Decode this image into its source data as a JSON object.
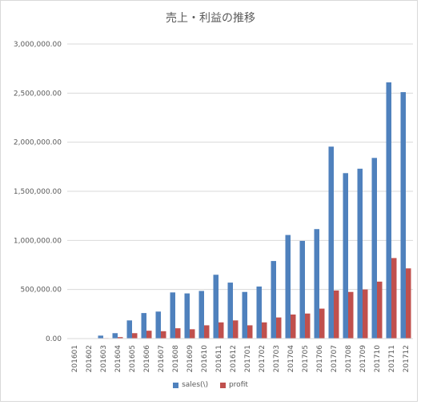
{
  "chart_data": {
    "type": "bar",
    "title": "売上・利益の推移",
    "categories": [
      "201601",
      "201602",
      "201603",
      "201604",
      "201605",
      "201606",
      "201607",
      "201608",
      "201609",
      "201610",
      "201611",
      "201612",
      "201701",
      "201702",
      "201703",
      "201704",
      "201705",
      "201706",
      "201707",
      "201708",
      "201709",
      "201710",
      "201711",
      "201712"
    ],
    "series": [
      {
        "name": "sales(\\)",
        "color": "#4f81bd",
        "values": [
          0,
          0,
          30000,
          55000,
          185000,
          260000,
          275000,
          470000,
          460000,
          485000,
          650000,
          570000,
          475000,
          530000,
          790000,
          1055000,
          995000,
          1115000,
          1955000,
          1685000,
          1730000,
          1840000,
          2610000,
          2510000
        ]
      },
      {
        "name": "profit",
        "color": "#c0504d",
        "values": [
          0,
          0,
          5000,
          15000,
          55000,
          80000,
          75000,
          105000,
          95000,
          135000,
          165000,
          185000,
          135000,
          165000,
          215000,
          245000,
          255000,
          305000,
          490000,
          475000,
          500000,
          580000,
          820000,
          715000
        ]
      }
    ],
    "yticks": [
      "0.00",
      "500,000.00",
      "1,000,000.00",
      "1,500,000.00",
      "2,000,000.00",
      "2,500,000.00",
      "3,000,000.00"
    ],
    "ylim": [
      0,
      3000000
    ],
    "grid": true,
    "legend_position": "bottom"
  }
}
